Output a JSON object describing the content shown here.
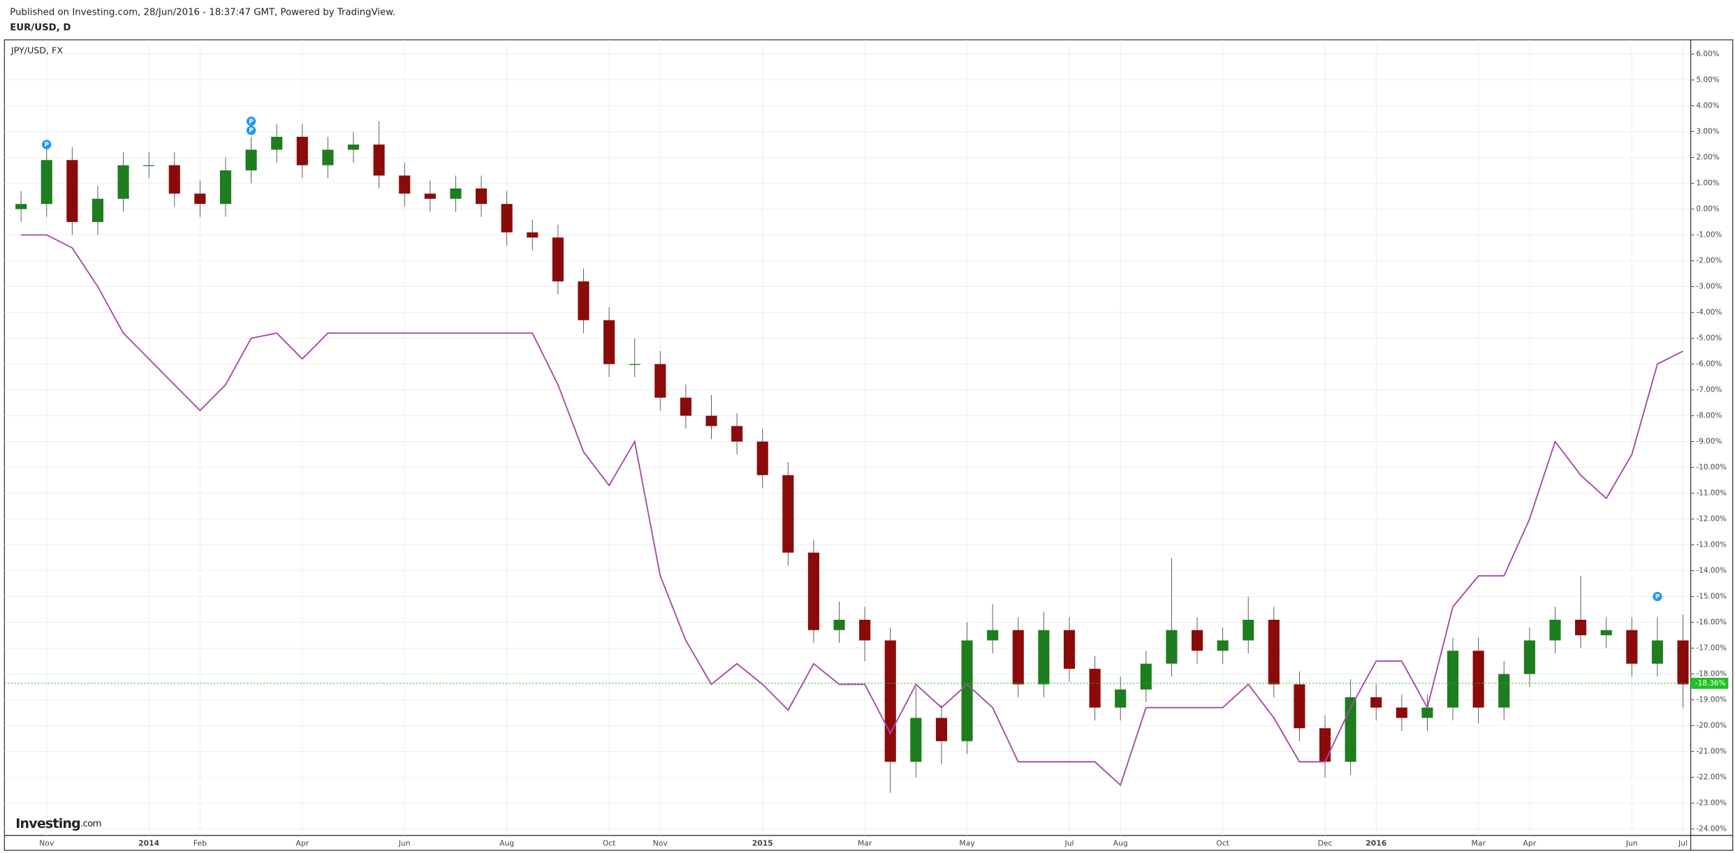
{
  "published": "Published on Investing.com, 28/Jun/2016 - 18:37:47 GMT, Powered by TradingView.",
  "logo": {
    "name": "Investing",
    "suffix": ".com"
  },
  "chart_data": {
    "type": "candlestick",
    "title": "EUR/USD, D",
    "categories": [
      null,
      "Nov",
      null,
      null,
      null,
      "2014",
      null,
      "Feb",
      null,
      null,
      null,
      "Apr",
      null,
      null,
      null,
      "Jun",
      null,
      null,
      null,
      "Aug",
      null,
      null,
      null,
      "Oct",
      null,
      "Nov",
      null,
      null,
      null,
      "2015",
      null,
      null,
      null,
      "Mar",
      null,
      null,
      null,
      "May",
      null,
      null,
      null,
      "Jul",
      null,
      "Aug",
      null,
      null,
      null,
      "Oct",
      null,
      null,
      null,
      "Dec",
      null,
      "2016",
      null,
      null,
      null,
      "Mar",
      null,
      "Apr",
      null,
      null,
      null,
      "Jun",
      null,
      "Jul"
    ],
    "series": [
      {
        "type": "candlestick",
        "up_color": "#1e7d1e",
        "down_color": "#8b0a0a",
        "open": [
          0.0,
          0.2,
          1.9,
          -0.5,
          0.4,
          1.7,
          1.7,
          0.6,
          0.2,
          1.5,
          2.3,
          2.8,
          1.7,
          2.3,
          2.5,
          1.3,
          0.6,
          0.4,
          0.8,
          0.2,
          -0.9,
          -1.1,
          -2.8,
          -4.3,
          -6.0,
          -6.0,
          -7.3,
          -8.0,
          -8.4,
          -9.0,
          -10.3,
          -13.3,
          -16.3,
          -15.9,
          -16.7,
          -21.4,
          -19.7,
          -20.6,
          -16.7,
          -16.3,
          -18.4,
          -16.3,
          -17.8,
          -19.3,
          -18.6,
          -17.6,
          -16.3,
          -17.1,
          -16.7,
          -15.9,
          -18.4,
          -20.1,
          -21.4,
          -18.9,
          -19.3,
          -19.7,
          -19.3,
          -17.1,
          -19.3,
          -18.0,
          -16.7,
          -15.9,
          -16.5,
          -16.3,
          -17.6,
          -16.7
        ],
        "high": [
          0.7,
          2.4,
          2.4,
          0.9,
          2.2,
          2.2,
          2.2,
          1.1,
          2.0,
          2.8,
          3.3,
          3.3,
          2.8,
          3.0,
          3.4,
          1.8,
          1.1,
          1.3,
          1.3,
          0.7,
          -0.4,
          -0.6,
          -2.3,
          -3.8,
          -5.0,
          -5.5,
          -6.8,
          -7.2,
          -7.9,
          -8.5,
          -9.8,
          -12.8,
          -15.2,
          -15.4,
          -16.2,
          -18.5,
          -19.2,
          -16.0,
          -15.3,
          -15.8,
          -15.6,
          -15.8,
          -17.3,
          -18.1,
          -17.1,
          -13.5,
          -15.8,
          -16.2,
          -15.0,
          -15.4,
          -17.9,
          -19.6,
          -18.2,
          -18.4,
          -18.8,
          -18.8,
          -16.6,
          -16.6,
          -17.5,
          -16.2,
          -15.4,
          -14.2,
          -15.8,
          -15.8,
          -15.8,
          -15.7
        ],
        "low": [
          -0.5,
          -0.3,
          -1.0,
          -1.0,
          -0.1,
          1.2,
          0.1,
          -0.3,
          -0.3,
          1.0,
          1.8,
          1.2,
          1.2,
          1.8,
          0.8,
          0.1,
          -0.1,
          -0.1,
          -0.3,
          -1.4,
          -1.6,
          -3.3,
          -4.8,
          -6.5,
          -6.5,
          -7.8,
          -8.5,
          -8.9,
          -9.5,
          -10.8,
          -13.8,
          -16.8,
          -16.8,
          -17.5,
          -22.6,
          -22.0,
          -21.5,
          -21.1,
          -17.2,
          -18.9,
          -18.9,
          -18.3,
          -19.8,
          -19.8,
          -19.1,
          -18.1,
          -17.6,
          -17.6,
          -17.2,
          -18.9,
          -20.6,
          -22.0,
          -21.9,
          -19.8,
          -20.2,
          -20.2,
          -19.8,
          -19.9,
          -19.8,
          -18.5,
          -17.2,
          -17.0,
          -17.0,
          -18.1,
          -18.1,
          -19.3
        ],
        "close": [
          0.2,
          1.9,
          -0.5,
          0.4,
          1.7,
          1.7,
          0.6,
          0.2,
          1.5,
          2.3,
          2.8,
          1.7,
          2.3,
          2.5,
          1.3,
          0.6,
          0.4,
          0.8,
          0.2,
          -0.9,
          -1.1,
          -2.8,
          -4.3,
          -6.0,
          -6.0,
          -7.3,
          -8.0,
          -8.4,
          -9.0,
          -10.3,
          -13.3,
          -16.3,
          -15.9,
          -16.7,
          -21.4,
          -19.7,
          -20.6,
          -16.7,
          -16.3,
          -18.4,
          -16.3,
          -17.8,
          -19.3,
          -18.6,
          -17.6,
          -16.3,
          -17.1,
          -16.7,
          -15.9,
          -18.4,
          -20.1,
          -21.4,
          -18.9,
          -19.3,
          -19.7,
          -19.3,
          -17.1,
          -19.3,
          -18.0,
          -16.7,
          -15.9,
          -16.5,
          -16.3,
          -17.6,
          -16.7,
          -18.4
        ]
      },
      {
        "type": "line",
        "name": "JPY/USD, FX",
        "color": "#a64ca6",
        "values": [
          -1.0,
          -1.0,
          -1.5,
          -3.0,
          -4.8,
          -5.8,
          -6.8,
          -7.8,
          -6.8,
          -5.0,
          -4.8,
          -5.8,
          -4.8,
          -4.8,
          -4.8,
          -4.8,
          -4.8,
          -4.8,
          -4.8,
          -4.8,
          -4.8,
          -6.8,
          -9.4,
          -10.7,
          -9.0,
          -14.2,
          -16.7,
          -18.4,
          -17.6,
          -18.4,
          -19.4,
          -17.6,
          -18.4,
          -18.4,
          -20.3,
          -18.4,
          -19.3,
          -18.4,
          -19.3,
          -21.4,
          -21.4,
          -21.4,
          -21.4,
          -22.3,
          -19.3,
          -19.3,
          -19.3,
          -19.3,
          -18.4,
          -19.7,
          -21.4,
          -21.4,
          -19.3,
          -17.5,
          -17.5,
          -19.3,
          -15.4,
          -14.2,
          -14.2,
          -12.0,
          -9.0,
          -10.3,
          -11.2,
          -9.5,
          -6.0,
          -5.5
        ]
      }
    ],
    "annotations": [
      {
        "index": 1,
        "value": 2.5,
        "text": "P"
      },
      {
        "index": 9,
        "value": 3.4,
        "text": "P"
      },
      {
        "index": 9,
        "value": 3.05,
        "text": "P"
      },
      {
        "index": 64,
        "value": -15.0,
        "text": "P"
      }
    ],
    "last_value": {
      "value": -18.36,
      "label": "-18.36%"
    },
    "last_value_color": "#22c022",
    "annotation_color": "#2196f3",
    "ylim": [
      -24.25,
      6.5
    ],
    "yticks": [
      {
        "value": 6,
        "label": "6.00%"
      },
      {
        "value": 5,
        "label": "5.00%"
      },
      {
        "value": 4,
        "label": "4.00%"
      },
      {
        "value": 3,
        "label": "3.00%"
      },
      {
        "value": 2,
        "label": "2.00%"
      },
      {
        "value": 1,
        "label": "1.00%"
      },
      {
        "value": 0,
        "label": "0.00%"
      },
      {
        "value": -1,
        "label": "-1.00%"
      },
      {
        "value": -2,
        "label": "-2.00%"
      },
      {
        "value": -3,
        "label": "-3.00%"
      },
      {
        "value": -4,
        "label": "-4.00%"
      },
      {
        "value": -5,
        "label": "-5.00%"
      },
      {
        "value": -6,
        "label": "-6.00%"
      },
      {
        "value": -7,
        "label": "-7.00%"
      },
      {
        "value": -8,
        "label": "-8.00%"
      },
      {
        "value": -9,
        "label": "-9.00%"
      },
      {
        "value": -10,
        "label": "-10.00%"
      },
      {
        "value": -11,
        "label": "-11.00%"
      },
      {
        "value": -12,
        "label": "-12.00%"
      },
      {
        "value": -13,
        "label": "-13.00%"
      },
      {
        "value": -14,
        "label": "-14.00%"
      },
      {
        "value": -15,
        "label": "-15.00%"
      },
      {
        "value": -16,
        "label": "-16.00%"
      },
      {
        "value": -17,
        "label": "-17.00%"
      },
      {
        "value": -18,
        "label": "-18.00%"
      },
      {
        "value": -19,
        "label": "-19.00%"
      },
      {
        "value": -20,
        "label": "-20.00%"
      },
      {
        "value": -21,
        "label": "-21.00%"
      },
      {
        "value": -22,
        "label": "-22.00%"
      },
      {
        "value": -23,
        "label": "-23.00%"
      },
      {
        "value": -24,
        "label": "-24.00%"
      }
    ],
    "grid": true
  }
}
